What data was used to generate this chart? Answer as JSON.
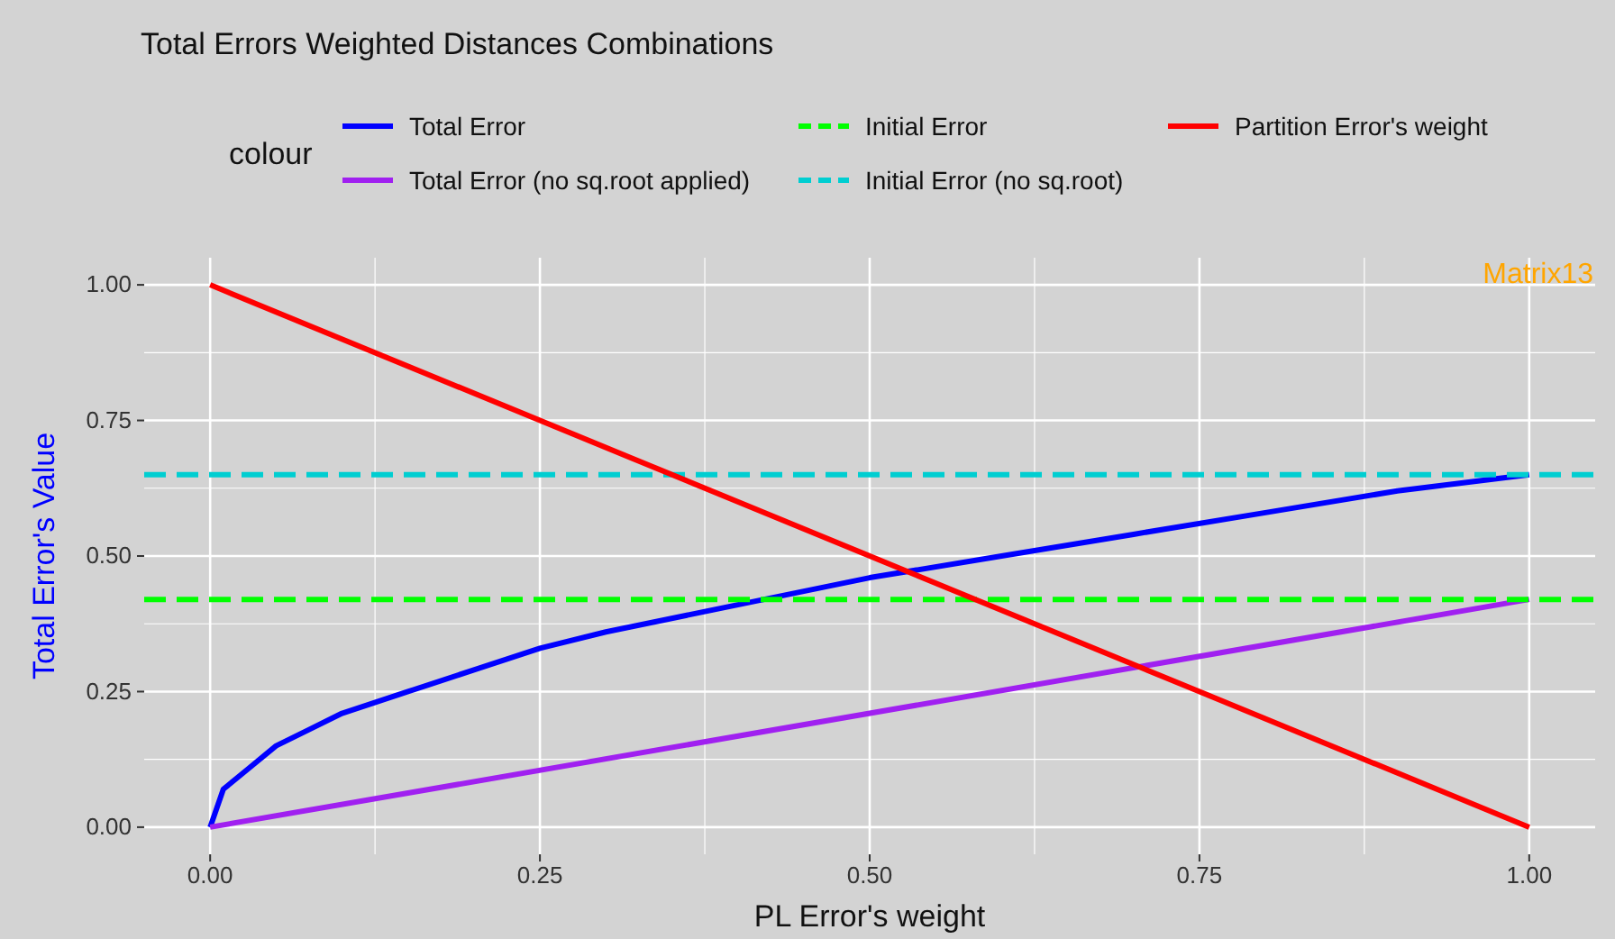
{
  "chart_data": {
    "type": "line",
    "title": "Total Errors Weighted Distances Combinations",
    "xlabel": "PL Error's weight",
    "ylabel": "Total Error's Value",
    "legend_title": "colour",
    "legend": "top",
    "grid": true,
    "marker": "none",
    "xlim": [
      -0.05,
      1.05
    ],
    "ylim": [
      -0.05,
      1.05
    ],
    "xticks": [
      {
        "value": 0,
        "label": "0.00"
      },
      {
        "value": 0.25,
        "label": "0.25"
      },
      {
        "value": 0.5,
        "label": "0.50"
      },
      {
        "value": 0.75,
        "label": "0.75"
      },
      {
        "value": 1,
        "label": "1.00"
      }
    ],
    "yticks": [
      {
        "value": 0,
        "label": "0.00"
      },
      {
        "value": 0.25,
        "label": "0.25"
      },
      {
        "value": 0.5,
        "label": "0.50"
      },
      {
        "value": 0.75,
        "label": "0.75"
      },
      {
        "value": 1,
        "label": "1.00"
      }
    ],
    "annotations": [
      "Matrix13"
    ],
    "series": [
      {
        "name": "Total Error",
        "color": "#0000ff",
        "line_style": "solid",
        "x": [
          0,
          0.01,
          0.02,
          0.03,
          0.05,
          0.075,
          0.1,
          0.15,
          0.2,
          0.25,
          0.3,
          0.4,
          0.5,
          0.6,
          0.7,
          0.8,
          0.9,
          1
        ],
        "values": [
          0,
          0.07,
          0.09,
          0.11,
          0.15,
          0.18,
          0.21,
          0.25,
          0.29,
          0.33,
          0.36,
          0.41,
          0.46,
          0.5,
          0.54,
          0.58,
          0.62,
          0.65
        ]
      },
      {
        "name": "Total Error (no sq.root applied)",
        "color": "#a020f0",
        "line_style": "solid",
        "x": [
          0,
          1
        ],
        "values": [
          0,
          0.42
        ]
      },
      {
        "name": "Initial Error",
        "color": "#00ff00",
        "line_style": "dashed",
        "x": [
          -0.05,
          1.05
        ],
        "values": [
          0.42,
          0.42
        ]
      },
      {
        "name": "Initial Error (no sq.root)",
        "color": "#00ced1",
        "line_style": "dashed",
        "x": [
          -0.05,
          1.05
        ],
        "values": [
          0.65,
          0.65
        ]
      },
      {
        "name": "Partition Error's weight",
        "color": "#ff0000",
        "line_style": "solid",
        "x": [
          0,
          1
        ],
        "values": [
          1,
          0
        ]
      }
    ]
  }
}
